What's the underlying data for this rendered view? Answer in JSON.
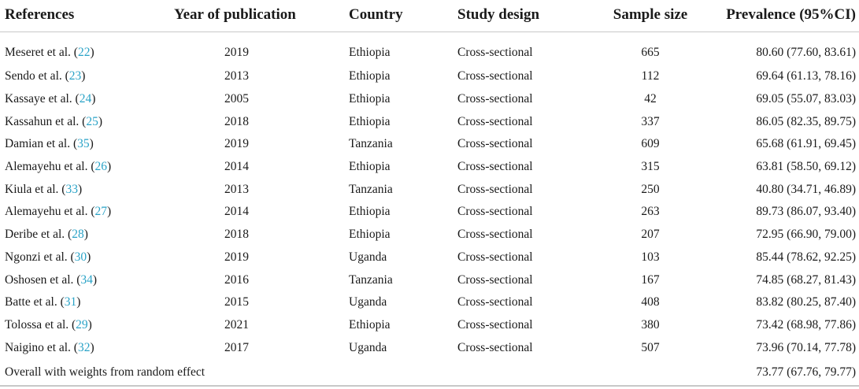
{
  "columns": {
    "references": "References",
    "year": "Year of publication",
    "country": "Country",
    "design": "Study design",
    "sample": "Sample size",
    "prevalence": "Prevalence (95%CI)"
  },
  "rows": [
    {
      "author": "Meseret et al. (",
      "cite": "22",
      "close": ")",
      "year": "2019",
      "country": "Ethiopia",
      "design": "Cross-sectional",
      "sample": "665",
      "prevalence": "80.60 (77.60, 83.61)"
    },
    {
      "author": "Sendo et al. (",
      "cite": "23",
      "close": ")",
      "year": "2013",
      "country": "Ethiopia",
      "design": "Cross-sectional",
      "sample": "112",
      "prevalence": "69.64 (61.13, 78.16)"
    },
    {
      "author": "Kassaye et al. (",
      "cite": "24",
      "close": ")",
      "year": "2005",
      "country": "Ethiopia",
      "design": "Cross-sectional",
      "sample": "42",
      "prevalence": "69.05 (55.07, 83.03)"
    },
    {
      "author": "Kassahun et al. (",
      "cite": "25",
      "close": ")",
      "year": "2018",
      "country": "Ethiopia",
      "design": "Cross-sectional",
      "sample": "337",
      "prevalence": "86.05 (82.35, 89.75)"
    },
    {
      "author": "Damian et al. (",
      "cite": "35",
      "close": ")",
      "year": "2019",
      "country": "Tanzania",
      "design": "Cross-sectional",
      "sample": "609",
      "prevalence": "65.68 (61.91, 69.45)"
    },
    {
      "author": "Alemayehu et al. (",
      "cite": "26",
      "close": ")",
      "year": "2014",
      "country": "Ethiopia",
      "design": "Cross-sectional",
      "sample": "315",
      "prevalence": "63.81 (58.50, 69.12)"
    },
    {
      "author": "Kiula et al. (",
      "cite": "33",
      "close": ")",
      "year": "2013",
      "country": "Tanzania",
      "design": "Cross-sectional",
      "sample": "250",
      "prevalence": "40.80 (34.71, 46.89)"
    },
    {
      "author": "Alemayehu et al. (",
      "cite": "27",
      "close": ")",
      "year": "2014",
      "country": "Ethiopia",
      "design": "Cross-sectional",
      "sample": "263",
      "prevalence": "89.73 (86.07, 93.40)"
    },
    {
      "author": "Deribe et al. (",
      "cite": "28",
      "close": ")",
      "year": "2018",
      "country": "Ethiopia",
      "design": "Cross-sectional",
      "sample": "207",
      "prevalence": "72.95 (66.90, 79.00)"
    },
    {
      "author": "Ngonzi et al. (",
      "cite": "30",
      "close": ")",
      "year": "2019",
      "country": "Uganda",
      "design": "Cross-sectional",
      "sample": "103",
      "prevalence": "85.44 (78.62, 92.25)"
    },
    {
      "author": "Oshosen et al. (",
      "cite": "34",
      "close": ")",
      "year": "2016",
      "country": "Tanzania",
      "design": "Cross-sectional",
      "sample": "167",
      "prevalence": "74.85 (68.27, 81.43)"
    },
    {
      "author": "Batte et al. (",
      "cite": "31",
      "close": ")",
      "year": "2015",
      "country": "Uganda",
      "design": "Cross-sectional",
      "sample": "408",
      "prevalence": "83.82 (80.25, 87.40)"
    },
    {
      "author": "Tolossa et al. (",
      "cite": "29",
      "close": ")",
      "year": "2021",
      "country": "Ethiopia",
      "design": "Cross-sectional",
      "sample": "380",
      "prevalence": "73.42 (68.98, 77.86)"
    },
    {
      "author": "Naigino et al. (",
      "cite": "32",
      "close": ")",
      "year": "2017",
      "country": "Uganda",
      "design": "Cross-sectional",
      "sample": "507",
      "prevalence": "73.96 (70.14, 77.78)"
    }
  ],
  "overall": {
    "label": "Overall with weights from random effect",
    "prevalence": "73.77 (67.76, 79.77)"
  },
  "colors": {
    "citation_link": "#2aa3c7",
    "rule": "#c8c8c8"
  }
}
